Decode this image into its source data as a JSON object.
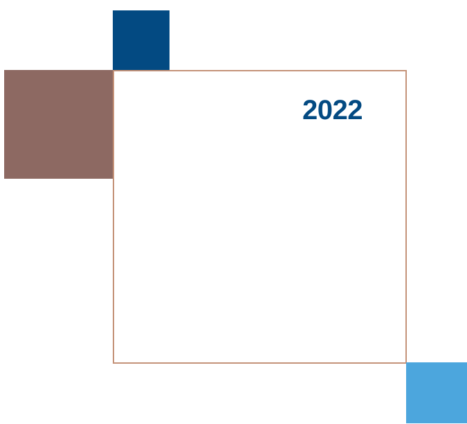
{
  "year_label": "2022",
  "colors": {
    "navy_block": "#034a82",
    "mauve_block": "#8d6962",
    "sky_block": "#4ca6dd",
    "frame_border": "#c49278",
    "year_text": "#034a82",
    "background": "#ffffff"
  }
}
